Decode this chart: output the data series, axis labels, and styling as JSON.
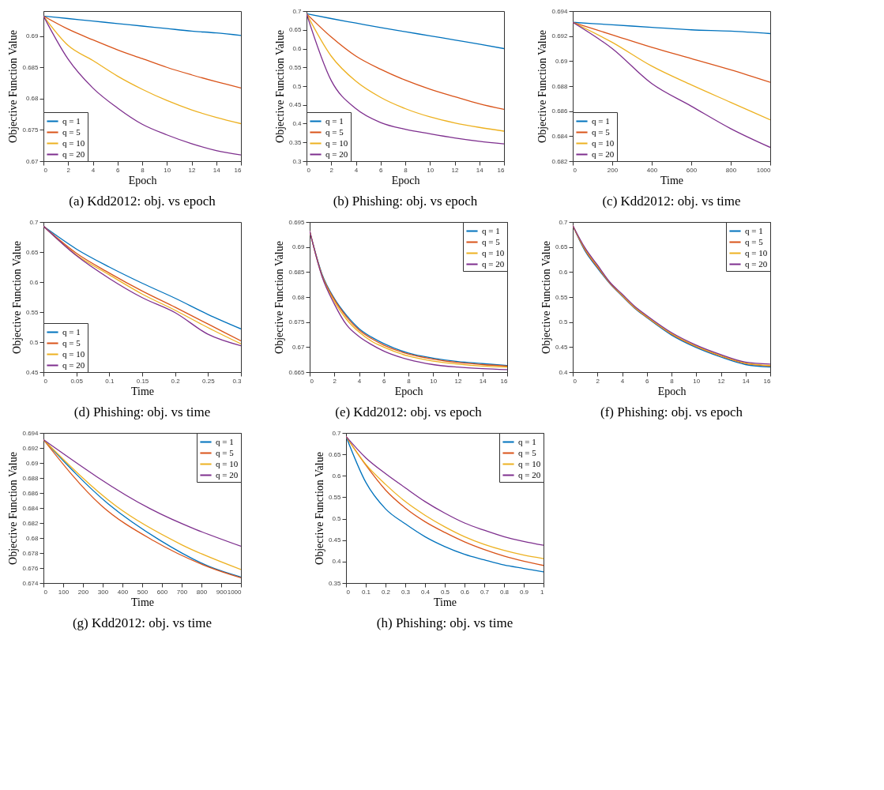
{
  "chart_data": [
    {
      "type": "line",
      "title": "(a) Kdd2012: obj. vs epoch",
      "xlabel": "Epoch",
      "ylabel": "Objective Function Value",
      "x": [
        0,
        2,
        4,
        6,
        8,
        10,
        12,
        14,
        16
      ],
      "xlim": [
        0,
        16
      ],
      "xticks": [
        0,
        2,
        4,
        6,
        8,
        10,
        12,
        14,
        16
      ],
      "ylim": [
        0.67,
        0.694
      ],
      "yticks": [
        0.67,
        0.675,
        0.68,
        0.685,
        0.69
      ],
      "legend": "bottom left",
      "grid": false,
      "series": [
        {
          "name": "q = 1",
          "color": "#0072bd",
          "values": [
            0.6932,
            0.6928,
            0.6924,
            0.692,
            0.6916,
            0.6912,
            0.6908,
            0.6905,
            0.6901
          ]
        },
        {
          "name": "q = 5",
          "color": "#d95319",
          "values": [
            0.6932,
            0.6911,
            0.6894,
            0.6878,
            0.6864,
            0.685,
            0.6838,
            0.6827,
            0.6817
          ]
        },
        {
          "name": "q = 10",
          "color": "#edb120",
          "values": [
            0.6932,
            0.6885,
            0.6861,
            0.6836,
            0.6815,
            0.6797,
            0.6782,
            0.677,
            0.676
          ]
        },
        {
          "name": "q = 20",
          "color": "#7e2f8e",
          "values": [
            0.6932,
            0.6863,
            0.6817,
            0.6785,
            0.6759,
            0.6742,
            0.6728,
            0.6717,
            0.671
          ]
        }
      ]
    },
    {
      "type": "line",
      "title": "(b) Phishing: obj. vs epoch",
      "xlabel": "Epoch",
      "ylabel": "Objective Function Value",
      "x": [
        0,
        2,
        4,
        6,
        8,
        10,
        12,
        14,
        16
      ],
      "xlim": [
        0,
        16
      ],
      "xticks": [
        0,
        2,
        4,
        6,
        8,
        10,
        12,
        14,
        16
      ],
      "ylim": [
        0.3,
        0.7
      ],
      "yticks": [
        0.3,
        0.35,
        0.4,
        0.45,
        0.5,
        0.55,
        0.6,
        0.65,
        0.7
      ],
      "legend": "bottom left",
      "grid": false,
      "series": [
        {
          "name": "q = 1",
          "color": "#0072bd",
          "values": [
            0.693,
            0.68,
            0.668,
            0.656,
            0.645,
            0.634,
            0.623,
            0.612,
            0.6
          ]
        },
        {
          "name": "q = 5",
          "color": "#d95319",
          "values": [
            0.693,
            0.631,
            0.58,
            0.545,
            0.516,
            0.492,
            0.472,
            0.453,
            0.438
          ]
        },
        {
          "name": "q = 10",
          "color": "#edb120",
          "values": [
            0.693,
            0.58,
            0.513,
            0.47,
            0.44,
            0.418,
            0.402,
            0.39,
            0.38
          ]
        },
        {
          "name": "q = 20",
          "color": "#7e2f8e",
          "values": [
            0.693,
            0.515,
            0.44,
            0.403,
            0.385,
            0.373,
            0.362,
            0.353,
            0.346
          ]
        }
      ]
    },
    {
      "type": "line",
      "title": "(c) Kdd2012: obj. vs time",
      "xlabel": "Time",
      "ylabel": "Objective Function Value",
      "x": [
        0,
        200,
        400,
        600,
        800,
        1000
      ],
      "xlim": [
        0,
        1000
      ],
      "xticks": [
        0,
        200,
        400,
        600,
        800,
        1000
      ],
      "ylim": [
        0.682,
        0.694
      ],
      "yticks": [
        0.682,
        0.684,
        0.686,
        0.688,
        0.69,
        0.692,
        0.694
      ],
      "legend": "bottom left",
      "grid": false,
      "series": [
        {
          "name": "q = 1",
          "color": "#0072bd",
          "values": [
            0.6931,
            0.6929,
            0.6927,
            0.6925,
            0.6924,
            0.6922
          ]
        },
        {
          "name": "q = 5",
          "color": "#d95319",
          "values": [
            0.6931,
            0.6921,
            0.6911,
            0.6902,
            0.6893,
            0.6883
          ]
        },
        {
          "name": "q = 10",
          "color": "#edb120",
          "values": [
            0.6931,
            0.6915,
            0.6896,
            0.6881,
            0.6867,
            0.6853
          ]
        },
        {
          "name": "q = 20",
          "color": "#7e2f8e",
          "values": [
            0.6931,
            0.691,
            0.6882,
            0.6864,
            0.6846,
            0.6831
          ]
        }
      ]
    },
    {
      "type": "line",
      "title": "(d) Phishing: obj. vs time",
      "xlabel": "Time",
      "ylabel": "Objective Function Value",
      "x": [
        0,
        0.05,
        0.1,
        0.15,
        0.2,
        0.25,
        0.3
      ],
      "xlim": [
        0,
        0.3
      ],
      "xticks": [
        0,
        0.05,
        0.1,
        0.15,
        0.2,
        0.25,
        0.3
      ],
      "ylim": [
        0.45,
        0.7
      ],
      "yticks": [
        0.45,
        0.5,
        0.55,
        0.6,
        0.65,
        0.7
      ],
      "legend": "bottom left",
      "grid": false,
      "series": [
        {
          "name": "q = 1",
          "color": "#0072bd",
          "values": [
            0.693,
            0.655,
            0.625,
            0.598,
            0.573,
            0.546,
            0.522
          ]
        },
        {
          "name": "q = 5",
          "color": "#d95319",
          "values": [
            0.693,
            0.648,
            0.615,
            0.585,
            0.558,
            0.53,
            0.502
          ]
        },
        {
          "name": "q = 10",
          "color": "#edb120",
          "values": [
            0.693,
            0.645,
            0.612,
            0.58,
            0.553,
            0.524,
            0.497
          ]
        },
        {
          "name": "q = 20",
          "color": "#7e2f8e",
          "values": [
            0.693,
            0.644,
            0.606,
            0.574,
            0.549,
            0.513,
            0.494
          ]
        }
      ]
    },
    {
      "type": "line",
      "title": "(e) Kdd2012: obj. vs epoch",
      "xlabel": "Epoch",
      "ylabel": "Objective Function Value",
      "x": [
        0,
        1,
        2,
        3,
        4,
        5,
        6,
        8,
        10,
        12,
        14,
        16
      ],
      "xlim": [
        0,
        16
      ],
      "xticks": [
        0,
        2,
        4,
        6,
        8,
        10,
        12,
        14,
        16
      ],
      "ylim": [
        0.665,
        0.695
      ],
      "yticks": [
        0.665,
        0.67,
        0.675,
        0.68,
        0.685,
        0.69,
        0.695
      ],
      "legend": "top right",
      "grid": false,
      "series": [
        {
          "name": "q = 1",
          "color": "#0072bd",
          "values": [
            0.6932,
            0.6846,
            0.6797,
            0.6763,
            0.6737,
            0.672,
            0.6707,
            0.6688,
            0.6678,
            0.6671,
            0.6667,
            0.6663
          ]
        },
        {
          "name": "q = 5",
          "color": "#d95319",
          "values": [
            0.6932,
            0.6844,
            0.6795,
            0.676,
            0.6734,
            0.6717,
            0.6704,
            0.6686,
            0.6676,
            0.6669,
            0.6665,
            0.6662
          ]
        },
        {
          "name": "q = 10",
          "color": "#edb120",
          "values": [
            0.6932,
            0.6842,
            0.6791,
            0.6755,
            0.673,
            0.6712,
            0.67,
            0.6682,
            0.6672,
            0.6666,
            0.6662,
            0.666
          ]
        },
        {
          "name": "q = 20",
          "color": "#7e2f8e",
          "values": [
            0.6932,
            0.6841,
            0.6786,
            0.6744,
            0.6721,
            0.6705,
            0.6692,
            0.6675,
            0.6665,
            0.666,
            0.6657,
            0.6655
          ]
        }
      ]
    },
    {
      "type": "line",
      "title": "(f) Phishing: obj. vs epoch",
      "xlabel": "Epoch",
      "ylabel": "Objective Function Value",
      "x": [
        0,
        1,
        2,
        3,
        4,
        5,
        6,
        8,
        10,
        12,
        14,
        16
      ],
      "xlim": [
        0,
        16
      ],
      "xticks": [
        0,
        2,
        4,
        6,
        8,
        10,
        12,
        14,
        16
      ],
      "ylim": [
        0.4,
        0.7
      ],
      "yticks": [
        0.4,
        0.45,
        0.5,
        0.55,
        0.6,
        0.65,
        0.7
      ],
      "legend": "top right",
      "grid": false,
      "series": [
        {
          "name": "q = 1",
          "color": "#0072bd",
          "values": [
            0.693,
            0.642,
            0.608,
            0.577,
            0.552,
            0.528,
            0.509,
            0.474,
            0.449,
            0.43,
            0.415,
            0.41
          ]
        },
        {
          "name": "q = 5",
          "color": "#d95319",
          "values": [
            0.693,
            0.644,
            0.61,
            0.578,
            0.553,
            0.529,
            0.51,
            0.476,
            0.451,
            0.432,
            0.417,
            0.412
          ]
        },
        {
          "name": "q = 10",
          "color": "#edb120",
          "values": [
            0.693,
            0.646,
            0.612,
            0.579,
            0.554,
            0.53,
            0.511,
            0.477,
            0.452,
            0.433,
            0.418,
            0.413
          ]
        },
        {
          "name": "q = 20",
          "color": "#7e2f8e",
          "values": [
            0.693,
            0.648,
            0.614,
            0.58,
            0.556,
            0.532,
            0.513,
            0.479,
            0.454,
            0.435,
            0.42,
            0.416
          ]
        }
      ]
    },
    {
      "type": "line",
      "title": "(g) Kdd2012: obj. vs time",
      "xlabel": "Time",
      "ylabel": "Objective Function Value",
      "xlim": [
        0,
        1000
      ],
      "xticks": [
        0,
        100,
        200,
        300,
        400,
        500,
        600,
        700,
        800,
        900,
        1000
      ],
      "ylim": [
        0.674,
        0.694
      ],
      "yticks": [
        0.674,
        0.676,
        0.678,
        0.68,
        0.682,
        0.684,
        0.686,
        0.688,
        0.69,
        0.692,
        0.694
      ],
      "legend": "top right",
      "grid": false,
      "series": [
        {
          "name": "q = 1",
          "color": "#0072bd",
          "x": [
            0,
            330,
            590,
            840,
            1000
          ],
          "values": [
            0.6931,
            0.6845,
            0.6797,
            0.6762,
            0.6748
          ]
        },
        {
          "name": "q = 5",
          "color": "#d95319",
          "x": [
            0,
            290,
            560,
            840,
            1000
          ],
          "values": [
            0.6931,
            0.6844,
            0.6796,
            0.6761,
            0.6747
          ]
        },
        {
          "name": "q = 10",
          "color": "#edb120",
          "x": [
            0,
            370,
            700,
            1000
          ],
          "values": [
            0.6931,
            0.6842,
            0.6791,
            0.6758
          ]
        },
        {
          "name": "q = 20",
          "color": "#7e2f8e",
          "x": [
            0,
            540,
            1000
          ],
          "values": [
            0.6931,
            0.6839,
            0.6789
          ]
        }
      ]
    },
    {
      "type": "line",
      "title": "(h) Phishing: obj. vs time",
      "xlabel": "Time",
      "ylabel": "Objective Function Value",
      "x": [
        0,
        0.1,
        0.2,
        0.3,
        0.4,
        0.5,
        0.6,
        0.7,
        0.8,
        0.9,
        1
      ],
      "xlim": [
        0,
        1
      ],
      "xticks": [
        0,
        0.1,
        0.2,
        0.3,
        0.4,
        0.5,
        0.6,
        0.7,
        0.8,
        0.9,
        1
      ],
      "ylim": [
        0.35,
        0.7
      ],
      "yticks": [
        0.35,
        0.4,
        0.45,
        0.5,
        0.55,
        0.6,
        0.65,
        0.7
      ],
      "legend": "top right",
      "grid": false,
      "series": [
        {
          "name": "q = 1",
          "color": "#0072bd",
          "values": [
            0.692,
            0.585,
            0.523,
            0.488,
            0.458,
            0.435,
            0.417,
            0.404,
            0.392,
            0.384,
            0.376
          ]
        },
        {
          "name": "q = 5",
          "color": "#d95319",
          "values": [
            0.692,
            0.625,
            0.567,
            0.525,
            0.493,
            0.468,
            0.446,
            0.428,
            0.413,
            0.401,
            0.391
          ]
        },
        {
          "name": "q = 10",
          "color": "#edb120",
          "values": [
            0.692,
            0.627,
            0.58,
            0.54,
            0.508,
            0.481,
            0.458,
            0.44,
            0.426,
            0.415,
            0.407
          ]
        },
        {
          "name": "q = 20",
          "color": "#7e2f8e",
          "values": [
            0.692,
            0.642,
            0.605,
            0.572,
            0.54,
            0.513,
            0.49,
            0.473,
            0.458,
            0.447,
            0.438
          ]
        }
      ]
    }
  ]
}
